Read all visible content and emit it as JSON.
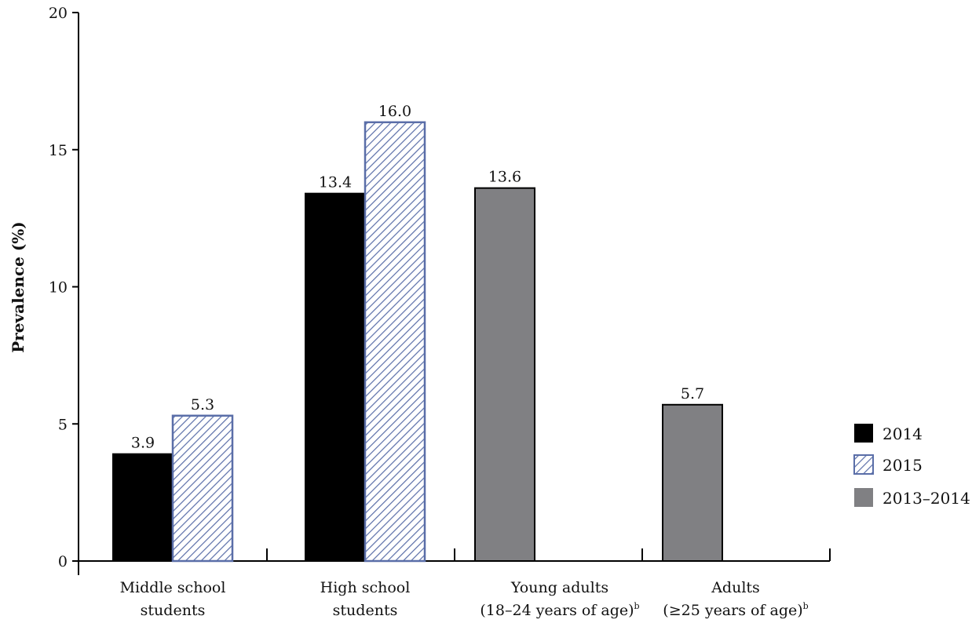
{
  "chart_data": {
    "type": "bar",
    "title": "",
    "xlabel": "",
    "ylabel": "Prevalence (%)",
    "ylim": [
      0,
      20
    ],
    "yticks": [
      0,
      5,
      10,
      15,
      20
    ],
    "grid": false,
    "legend_position": "right",
    "categories": [
      {
        "line1": "Middle school",
        "line2": "students",
        "sup": ""
      },
      {
        "line1": "High school",
        "line2": "students",
        "sup": ""
      },
      {
        "line1": "Young adults",
        "line2": "(18–24 years of age)",
        "sup": "b"
      },
      {
        "line1": "Adults",
        "line2": "(≥25 years of age)",
        "sup": "b"
      }
    ],
    "series": [
      {
        "name": "2014",
        "style": "solid",
        "color": "#000000",
        "values": [
          3.9,
          13.4,
          null,
          null
        ],
        "labels": [
          "3.9",
          "13.4",
          null,
          null
        ]
      },
      {
        "name": "2015",
        "style": "hatched",
        "color": "#5a6ea8",
        "values": [
          5.3,
          16.0,
          null,
          null
        ],
        "labels": [
          "5.3",
          "16.0",
          null,
          null
        ]
      },
      {
        "name": "2013–2014",
        "style": "solid",
        "color": "#808083",
        "values": [
          null,
          null,
          13.6,
          5.7
        ],
        "labels": [
          null,
          null,
          "13.6",
          "5.7"
        ]
      }
    ]
  }
}
